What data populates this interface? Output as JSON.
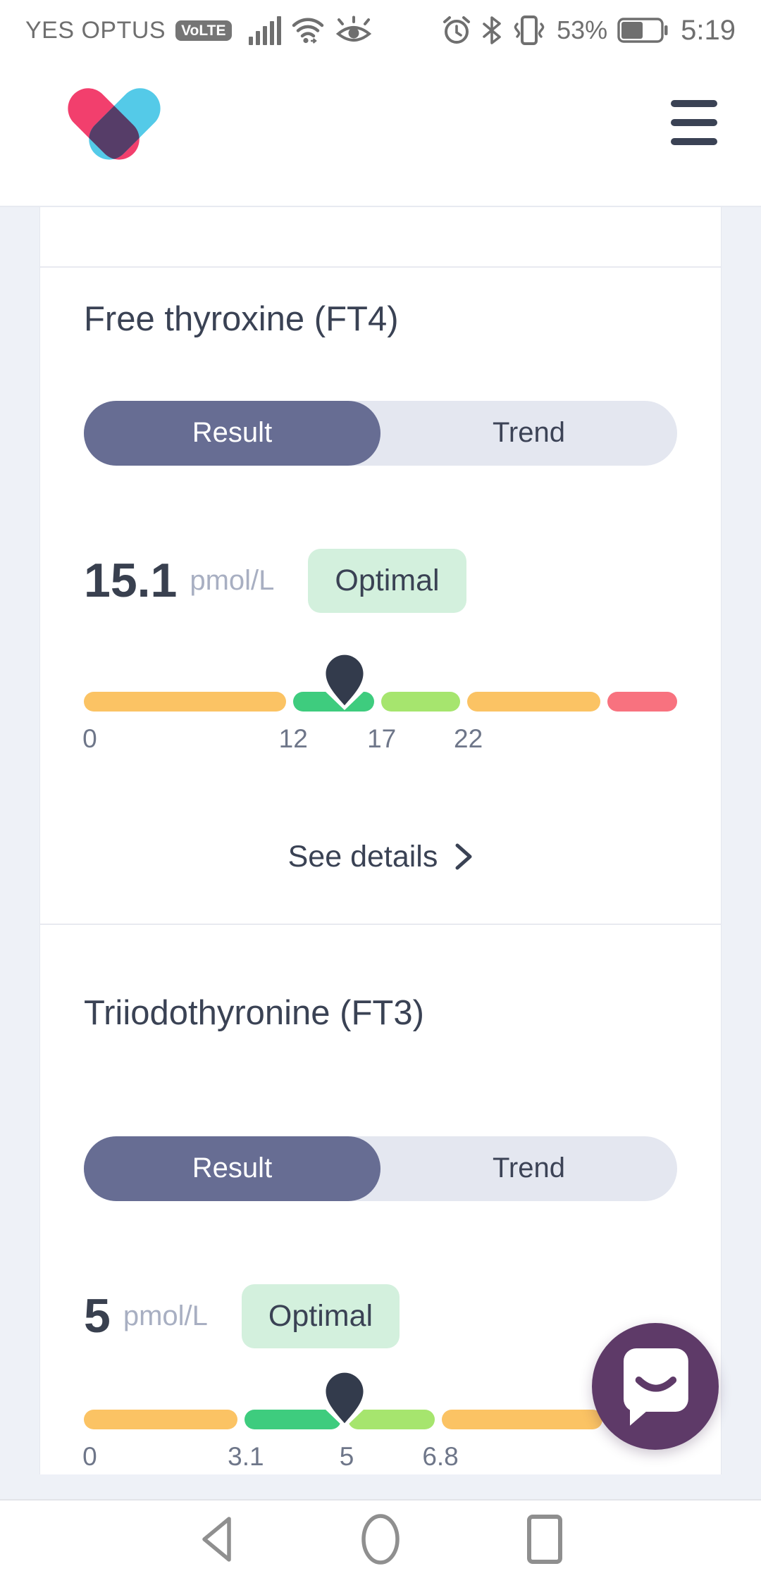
{
  "status_bar": {
    "carrier": "YES OPTUS",
    "volte": "VoLTE",
    "battery_percent": "53%",
    "time": "5:19",
    "icons": [
      "signal-bars-icon",
      "wifi-icon",
      "eye-comfort-icon",
      "alarm-icon",
      "bluetooth-icon",
      "vibrate-icon",
      "battery-icon"
    ]
  },
  "header": {
    "logo": "heart-logo",
    "menu": "hamburger-menu"
  },
  "cards": [
    {
      "title": "Free thyroxine (FT4)",
      "tabs": [
        {
          "label": "Result",
          "selected": true
        },
        {
          "label": "Trend",
          "selected": false
        }
      ],
      "value": "15.1",
      "unit": "pmol/L",
      "status": "Optimal",
      "see_details": "See details",
      "bar": {
        "marker_value": 15.1,
        "marker_pos_pct": 44.0,
        "segments": [
          {
            "color": "#FBC364",
            "flex": 282
          },
          {
            "color": "#3ECC7E",
            "flex": 113
          },
          {
            "color": "#A6E56E",
            "flex": 111
          },
          {
            "color": "#FBC364",
            "flex": 186
          },
          {
            "color": "#F8727F",
            "flex": 97
          }
        ],
        "ticks": [
          {
            "label": "0",
            "pos_pct": 1
          },
          {
            "label": "12",
            "pos_pct": 35.3
          },
          {
            "label": "17",
            "pos_pct": 50.2
          },
          {
            "label": "22",
            "pos_pct": 64.8
          }
        ]
      }
    },
    {
      "title": "Triiodothyronine (FT3)",
      "tabs": [
        {
          "label": "Result",
          "selected": true
        },
        {
          "label": "Trend",
          "selected": false
        }
      ],
      "value": "5",
      "unit": "pmol/L",
      "status": "Optimal",
      "bar": {
        "marker_value": 5,
        "marker_pos_pct": 44.0,
        "segments": [
          {
            "color": "#FBC364",
            "flex": 216
          },
          {
            "color": "#3ECC7E",
            "flex": 135
          },
          {
            "color": "#A6E56E",
            "flex": 122
          },
          {
            "color": "#FBC364",
            "flex": 225
          },
          {
            "color": "#F8727F",
            "flex": 95
          }
        ],
        "ticks": [
          {
            "label": "0",
            "pos_pct": 1
          },
          {
            "label": "3.1",
            "pos_pct": 27.3
          },
          {
            "label": "5",
            "pos_pct": 44.3
          },
          {
            "label": "6.8",
            "pos_pct": 60.1
          }
        ]
      }
    }
  ],
  "fab": {
    "icon": "chat-smiley-icon"
  },
  "nav": {
    "buttons": [
      "back",
      "home",
      "recents"
    ]
  },
  "colors": {
    "status_optimal_bg": "#D3F0DD",
    "toggle_selected": "#676D93",
    "toggle_track": "#E4E7F0",
    "range_amber": "#FBC364",
    "range_green": "#3ECC7E",
    "range_light_green": "#A6E56E",
    "range_red": "#F8727F",
    "marker": "#333B4C",
    "fab_purple": "#5E3A68",
    "logo_pink": "#F23F6D",
    "logo_cyan": "#54CAE8",
    "logo_overlap": "#563D68",
    "text_dark": "#3A4254"
  }
}
